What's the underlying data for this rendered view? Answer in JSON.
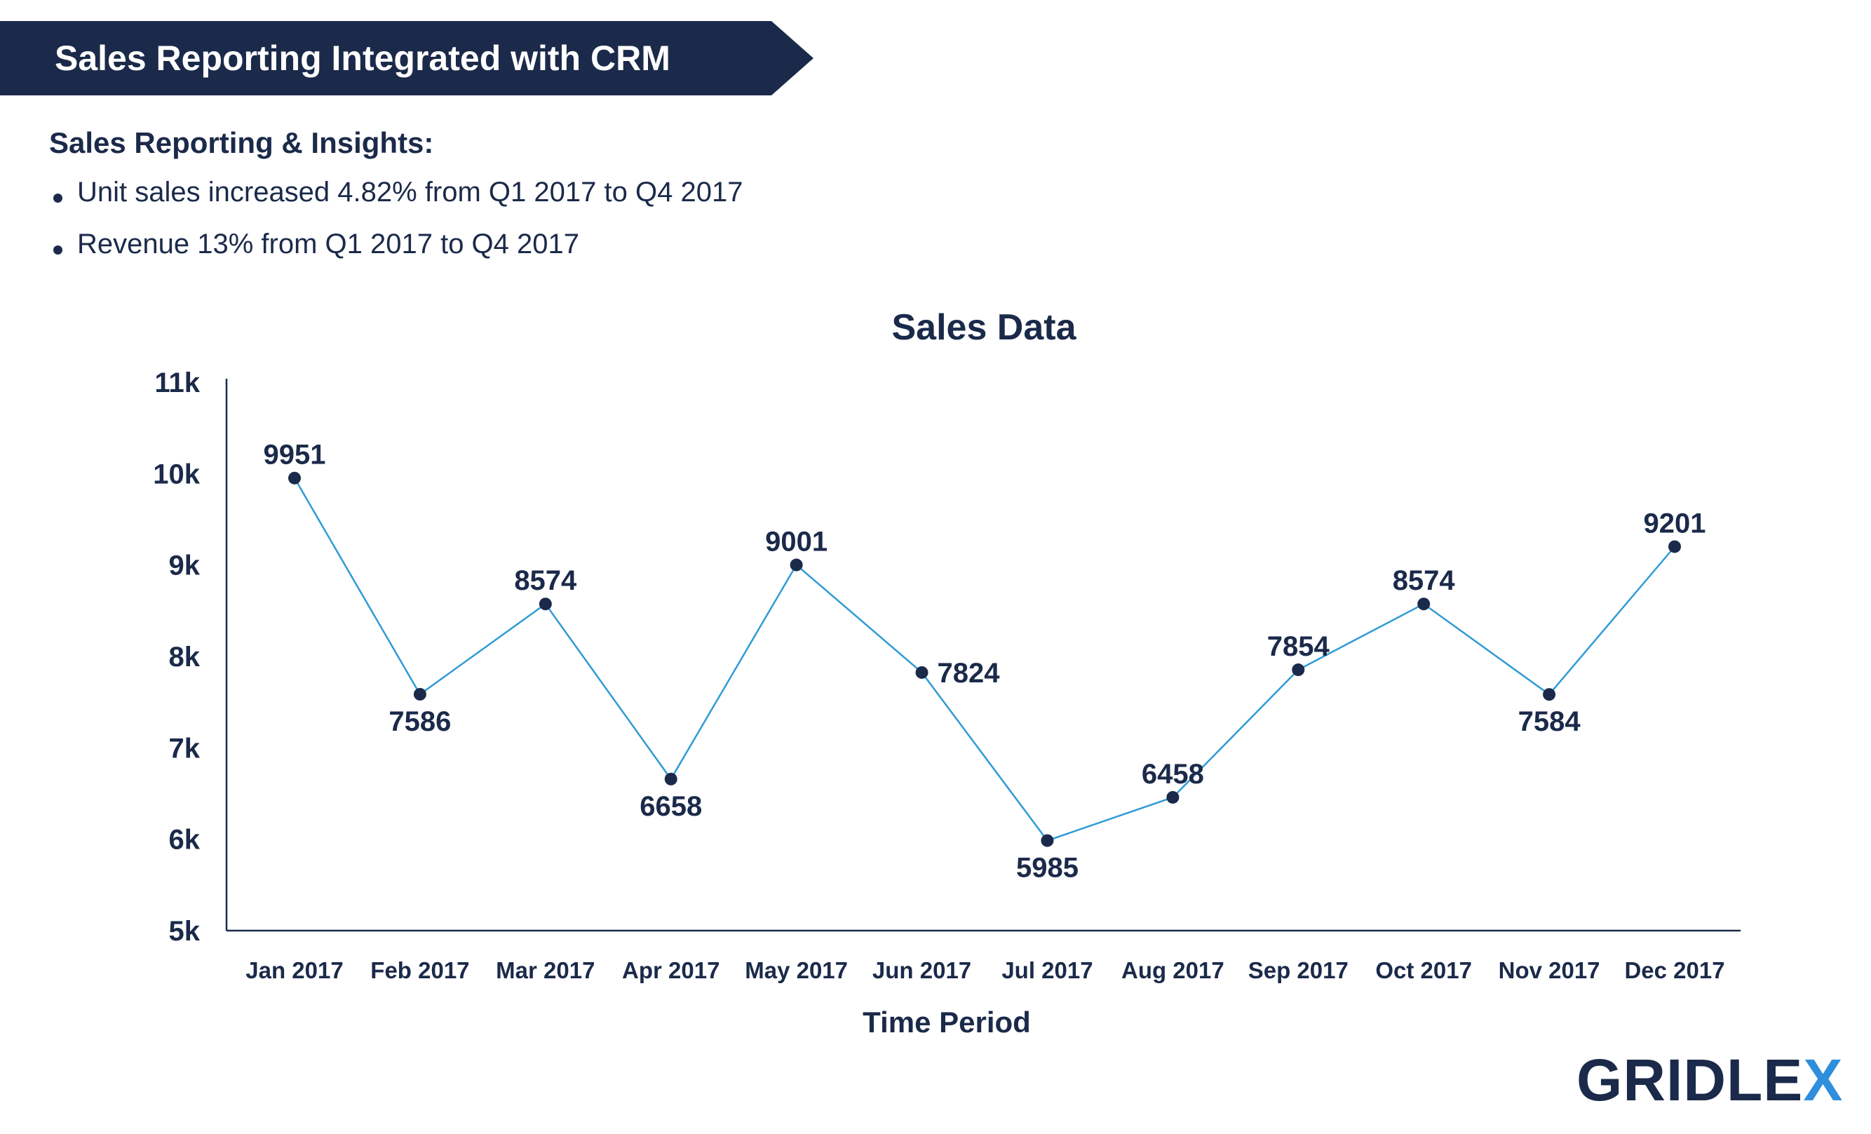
{
  "banner": {
    "title": "Sales Reporting Integrated with CRM"
  },
  "insights": {
    "heading": "Sales Reporting & Insights:",
    "bullets": [
      "Unit sales increased 4.82% from Q1 2017 to Q4 2017",
      "Revenue 13% from Q1 2017 to Q4 2017"
    ]
  },
  "colors": {
    "navy": "#1b2a4a",
    "line": "#2f9bd6",
    "accent": "#2f8fdc"
  },
  "chart_data": {
    "type": "line",
    "title": "Sales Data",
    "xlabel": "Time Period",
    "ylabel": "",
    "categories": [
      "Jan 2017",
      "Feb 2017",
      "Mar 2017",
      "Apr 2017",
      "May 2017",
      "Jun 2017",
      "Jul 2017",
      "Aug 2017",
      "Sep 2017",
      "Oct 2017",
      "Nov 2017",
      "Dec 2017"
    ],
    "series": [
      {
        "values": [
          9951,
          7586,
          8574,
          6658,
          9001,
          7824,
          5985,
          6458,
          7854,
          8574,
          7584,
          9201
        ]
      }
    ],
    "data_labels": [
      "9951",
      "7586",
      "8574",
      "6658",
      "9001",
      "7824",
      "5985",
      "6458",
      "7854",
      "8574",
      "7584",
      "9201"
    ],
    "label_placement": [
      "above",
      "below",
      "above",
      "below",
      "above",
      "right",
      "below",
      "above",
      "above",
      "above",
      "below",
      "above"
    ],
    "y_ticks": [
      5000,
      6000,
      7000,
      8000,
      9000,
      10000,
      11000
    ],
    "y_tick_labels": [
      "5k",
      "6k",
      "7k",
      "8k",
      "9k",
      "10k",
      "11k"
    ],
    "ylim": [
      5000,
      11000
    ],
    "grid": false,
    "legend": "none"
  },
  "logo": {
    "main": "GRIDLE",
    "x": "X"
  }
}
